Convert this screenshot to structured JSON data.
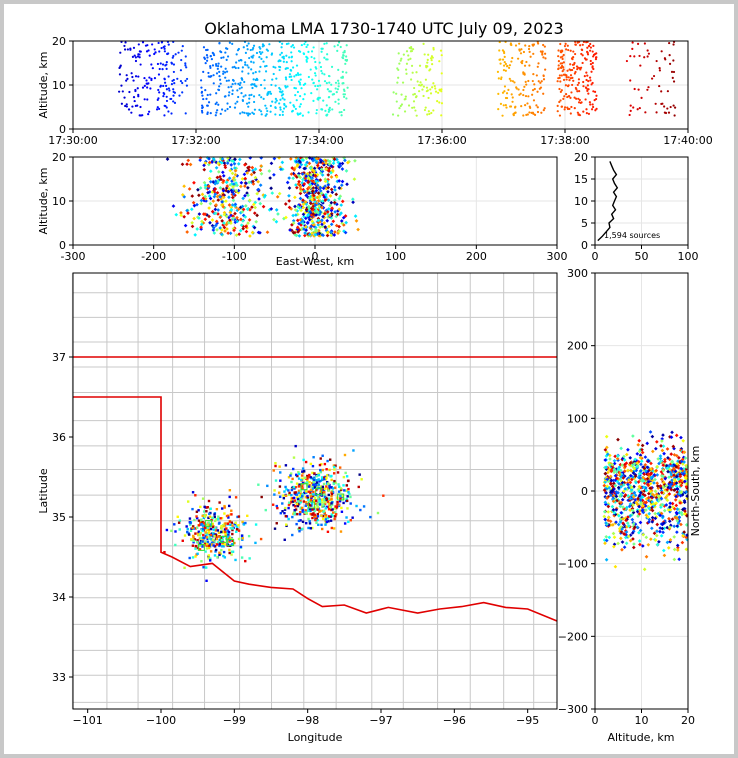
{
  "figure": {
    "title": "Oklahoma LMA 1730-1740 UTC July 09, 2023",
    "source_count_label": "1,594 sources"
  },
  "chart_data": [
    {
      "panel": "altitude-vs-time",
      "type": "scatter",
      "xlabel": "",
      "ylabel": "Altitude, km",
      "x_ticks": [
        "17:30:00",
        "17:32:00",
        "17:34:00",
        "17:36:00",
        "17:38:00",
        "17:40:00"
      ],
      "xlim_minutes": [
        0,
        10
      ],
      "ylim": [
        0,
        20
      ],
      "y_ticks": [
        0,
        10,
        20
      ],
      "color_scale": "jet colormap by time (blue early → red late)",
      "activity_bursts_minutes": [
        {
          "center": 1.3,
          "width": 0.7,
          "density": 180
        },
        {
          "center": 2.8,
          "width": 0.9,
          "density": 300
        },
        {
          "center": 4.0,
          "width": 0.6,
          "density": 180
        },
        {
          "center": 5.6,
          "width": 0.5,
          "density": 110
        },
        {
          "center": 7.3,
          "width": 0.5,
          "density": 150
        },
        {
          "center": 8.2,
          "width": 0.4,
          "density": 200
        },
        {
          "center": 9.4,
          "width": 0.5,
          "density": 60
        }
      ]
    },
    {
      "panel": "altitude-vs-east-west",
      "type": "scatter",
      "xlabel": "East-West, km",
      "ylabel": "Altitude, km",
      "xlim": [
        -300,
        300
      ],
      "x_ticks": [
        -300,
        -200,
        -100,
        0,
        100,
        200,
        300
      ],
      "ylim": [
        0,
        20
      ],
      "y_ticks": [
        0,
        10,
        20
      ],
      "clusters_km": [
        {
          "x": -110,
          "spread": 25,
          "n": 380
        },
        {
          "x": 0,
          "spread": 18,
          "n": 560
        }
      ]
    },
    {
      "panel": "altitude-histogram",
      "type": "line",
      "xlim": [
        0,
        100
      ],
      "x_ticks": [
        0,
        50,
        100
      ],
      "ylim": [
        0,
        20
      ],
      "y_ticks": [
        0,
        5,
        10,
        15,
        20
      ],
      "altitude_km": [
        1,
        2,
        3,
        4,
        5,
        6,
        7,
        8,
        9,
        10,
        11,
        12,
        13,
        14,
        15,
        16,
        17,
        18,
        19
      ],
      "source_count": [
        3,
        8,
        12,
        16,
        15,
        20,
        18,
        22,
        19,
        21,
        23,
        20,
        24,
        21,
        19,
        23,
        20,
        18,
        16
      ]
    },
    {
      "panel": "plan-view",
      "type": "scatter",
      "xlabel": "Longitude",
      "ylabel": "Latitude",
      "xlim": [
        -101.2,
        -94.6
      ],
      "ylim": [
        32.6,
        38.05
      ],
      "x_ticks": [
        -101,
        -100,
        -99,
        -98,
        -97,
        -96,
        -95
      ],
      "y_ticks": [
        33,
        34,
        35,
        36,
        37
      ],
      "clusters_deg": [
        {
          "lon": -99.3,
          "lat": 34.8,
          "spread": 0.18,
          "n": 380
        },
        {
          "lon": -97.9,
          "lat": 35.25,
          "spread": 0.2,
          "n": 560
        }
      ],
      "station_markers": [
        {
          "lon": -99.45,
          "lat": 34.62
        },
        {
          "lon": -99.15,
          "lat": 34.72
        },
        {
          "lon": -99.35,
          "lat": 34.92
        },
        {
          "lon": -99.05,
          "lat": 34.68
        },
        {
          "lon": -97.55,
          "lat": 35.25
        },
        {
          "lon": -97.85,
          "lat": 35.32
        },
        {
          "lon": -98.05,
          "lat": 35.38
        },
        {
          "lon": -97.95,
          "lat": 35.15
        }
      ]
    },
    {
      "panel": "north-south-vs-altitude",
      "type": "scatter",
      "xlabel": "Altitude, km",
      "ylabel": "North-South, km",
      "xlim": [
        0,
        20
      ],
      "x_ticks": [
        0,
        10,
        20
      ],
      "ylim": [
        -300,
        300
      ],
      "y_ticks": [
        -300,
        -200,
        -100,
        0,
        100,
        200,
        300
      ],
      "clusters_km": [
        {
          "y": -30,
          "spread": 28,
          "n": 380
        },
        {
          "y": 20,
          "spread": 22,
          "n": 560
        }
      ]
    }
  ]
}
